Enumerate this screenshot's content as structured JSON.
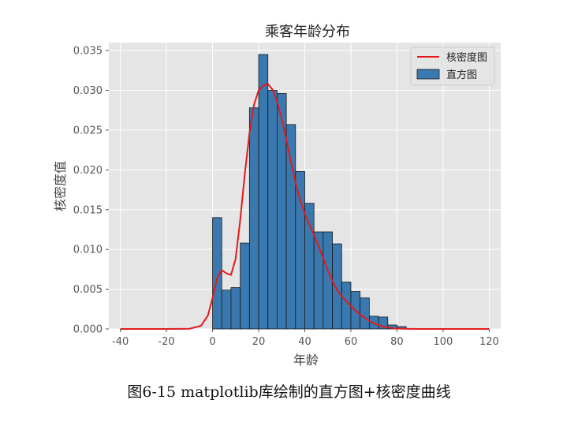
{
  "caption": "图6-15  matplotlib库绘制的直方图+核密度曲线",
  "chart_data": {
    "type": "bar",
    "title": "乘客年龄分布",
    "xlabel": "年龄",
    "ylabel": "核密度值",
    "xlim": [
      -45,
      125
    ],
    "ylim": [
      0,
      0.036
    ],
    "xticks": [
      -40,
      -20,
      0,
      20,
      40,
      60,
      80,
      100,
      120
    ],
    "yticks": [
      0.0,
      0.005,
      0.01,
      0.015,
      0.02,
      0.025,
      0.03,
      0.035
    ],
    "xtick_labels": [
      "-40",
      "-20",
      "0",
      "20",
      "40",
      "60",
      "80",
      "100",
      "120"
    ],
    "ytick_labels": [
      "0.000",
      "0.005",
      "0.010",
      "0.015",
      "0.020",
      "0.025",
      "0.030",
      "0.035"
    ],
    "grid": true,
    "legend_position": "top-right",
    "legend": [
      "核密度图",
      "直方图"
    ],
    "colors": {
      "bar": "#3a78b0",
      "bar_edge": "#1a1a1a",
      "kde": "#e31a1c",
      "plot_bg": "#e5e5e5",
      "grid": "#ffffff"
    },
    "histogram": {
      "name": "直方图",
      "bin_width": 4,
      "bin_edges_start": 0,
      "values": [
        0.014,
        0.0049,
        0.0052,
        0.0108,
        0.0278,
        0.0345,
        0.03,
        0.0296,
        0.0257,
        0.0198,
        0.0158,
        0.0122,
        0.0122,
        0.0107,
        0.0059,
        0.0047,
        0.0039,
        0.0016,
        0.0015,
        0.0005,
        0.0003
      ]
    },
    "kde": {
      "name": "核密度图",
      "x": [
        -40,
        -20,
        -10,
        -5,
        -2,
        0,
        2,
        4,
        6,
        8,
        10,
        12,
        14,
        16,
        18,
        20,
        22,
        24,
        26,
        28,
        30,
        32,
        34,
        36,
        38,
        40,
        42,
        44,
        46,
        48,
        50,
        52,
        54,
        56,
        58,
        60,
        62,
        64,
        66,
        68,
        70,
        72,
        74,
        76,
        78,
        80,
        85,
        90,
        100,
        120
      ],
      "y": [
        0.0,
        0.0,
        3e-05,
        0.0004,
        0.0017,
        0.0039,
        0.0064,
        0.0074,
        0.007,
        0.0068,
        0.0088,
        0.0137,
        0.0195,
        0.0246,
        0.0282,
        0.03,
        0.0306,
        0.0308,
        0.0301,
        0.0286,
        0.0264,
        0.0238,
        0.021,
        0.0184,
        0.0162,
        0.0145,
        0.0131,
        0.0118,
        0.0104,
        0.0089,
        0.0073,
        0.006,
        0.0049,
        0.0041,
        0.0035,
        0.0029,
        0.0023,
        0.0018,
        0.0014,
        0.001,
        0.0007,
        0.0005,
        0.0003,
        0.0002,
        0.0001,
        5e-05,
        1e-05,
        0.0,
        0.0,
        0.0
      ]
    }
  }
}
